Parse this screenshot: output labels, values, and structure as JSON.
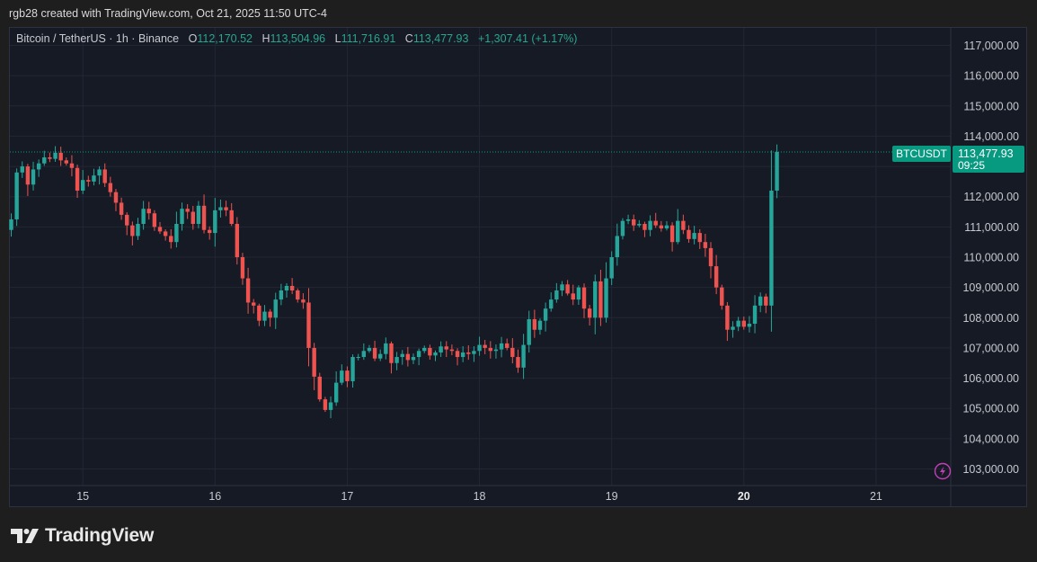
{
  "header": {
    "caption": "rgb28 created with TradingView.com, Oct 21, 2025 11:50 UTC-4"
  },
  "legend": {
    "symbol": "Bitcoin / TetherUS · 1h · Binance",
    "o_label": "O",
    "o_value": "112,170.52",
    "h_label": "H",
    "h_value": "113,504.96",
    "l_label": "L",
    "l_value": "111,716.91",
    "c_label": "C",
    "c_value": "113,477.93",
    "change": "+1,307.41 (+1.17%)"
  },
  "price_badge": {
    "symbol": "BTCUSDT",
    "price": "113,477.93",
    "countdown": "09:25"
  },
  "footer": {
    "brand": "TradingView"
  },
  "colors": {
    "up": "#26a69a",
    "down": "#ef5350",
    "background": "#161a25",
    "grid": "#232735",
    "axis_text": "#c7c9cf",
    "badge": "#089981",
    "alert_icon": "#c23fb8"
  },
  "icons": {
    "alert": "lightning-alert-icon",
    "brand_logo": "tradingview-logo-icon"
  },
  "chart_data": {
    "type": "candlestick",
    "title": "",
    "interval": "1h",
    "ylim": [
      102500,
      117600
    ],
    "y_ticks": [
      103000,
      104000,
      105000,
      106000,
      107000,
      108000,
      109000,
      110000,
      111000,
      112000,
      113000,
      114000,
      115000,
      116000,
      117000
    ],
    "y_tick_labels": [
      "103,000.00",
      "104,000.00",
      "105,000.00",
      "106,000.00",
      "107,000.00",
      "108,000.00",
      "109,000.00",
      "110,000.00",
      "111,000.00",
      "112,000.00",
      "113,000.00",
      "114,000.00",
      "115,000.00",
      "116,000.00",
      "117,000.00"
    ],
    "x_ticks": [
      {
        "label": "15",
        "bar": 13,
        "bold": false
      },
      {
        "label": "16",
        "bar": 37,
        "bold": false
      },
      {
        "label": "17",
        "bar": 61,
        "bold": false
      },
      {
        "label": "18",
        "bar": 85,
        "bold": false
      },
      {
        "label": "19",
        "bar": 109,
        "bold": false
      },
      {
        "label": "20",
        "bar": 133,
        "bold": true
      },
      {
        "label": "21",
        "bar": 157,
        "bold": false
      }
    ],
    "last_price": 113477.93,
    "grid": true,
    "closes": [
      111250,
      112800,
      113000,
      112400,
      112900,
      113100,
      113300,
      113250,
      113450,
      113200,
      113100,
      112950,
      112200,
      112550,
      112500,
      112700,
      112900,
      112450,
      112150,
      111800,
      111400,
      111050,
      110700,
      111100,
      111600,
      111450,
      111000,
      110850,
      110700,
      110500,
      111100,
      111600,
      111500,
      111100,
      111700,
      110900,
      110800,
      111550,
      111650,
      111550,
      111100,
      110000,
      109300,
      108500,
      108400,
      107900,
      108200,
      108000,
      108600,
      108900,
      109050,
      108900,
      108600,
      108500,
      107000,
      106050,
      105300,
      104950,
      105200,
      105850,
      106250,
      105900,
      106700,
      106700,
      106900,
      107000,
      106650,
      106800,
      107150,
      106500,
      106700,
      106800,
      106600,
      106700,
      106900,
      107000,
      106750,
      106850,
      107050,
      106950,
      106900,
      106700,
      106850,
      106800,
      106900,
      107100,
      107000,
      106900,
      106950,
      107150,
      107000,
      106700,
      106350,
      107100,
      107950,
      107600,
      107900,
      108300,
      108600,
      108900,
      109100,
      108800,
      108600,
      109000,
      108300,
      108000,
      109200,
      108000,
      109300,
      110000,
      110700,
      111200,
      111250,
      111050,
      111100,
      110900,
      111200,
      111050,
      110950,
      111050,
      110500,
      111200,
      110900,
      110600,
      110800,
      110500,
      110300,
      109700,
      109000,
      108400,
      107600,
      107700,
      107900,
      107700,
      107800,
      108400,
      108700,
      108400,
      112200,
      113477.93
    ]
  }
}
